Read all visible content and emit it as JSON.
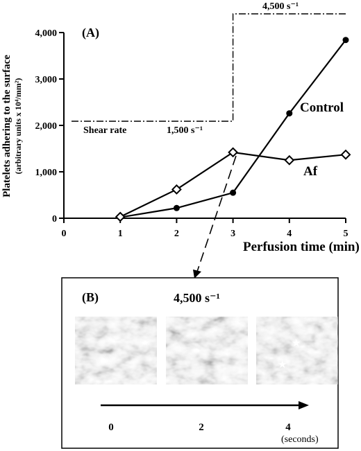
{
  "chart_data": {
    "type": "line",
    "panel_label": "(A)",
    "ylabel": "Platelets adhering to the surface",
    "ylabel_units": "(arbitrary units x 10⁴/mm²)",
    "xlabel": "Perfusion time (min)",
    "xlim": [
      0,
      5
    ],
    "ylim": [
      0,
      4000
    ],
    "x_ticks": [
      "0",
      "1",
      "2",
      "3",
      "4",
      "5"
    ],
    "y_ticks": [
      "0",
      "1,000",
      "2,000",
      "3,000",
      "4,000"
    ],
    "x_tick_values": [
      0,
      1,
      2,
      3,
      4,
      5
    ],
    "y_tick_values": [
      0,
      1000,
      2000,
      3000,
      4000
    ],
    "series": [
      {
        "name": "Control",
        "marker": "filled-circle",
        "x": [
          1,
          2,
          3,
          4,
          5
        ],
        "y": [
          20,
          220,
          550,
          2260,
          3840
        ]
      },
      {
        "name": "Af",
        "marker": "open-diamond",
        "x": [
          1,
          2,
          3,
          4,
          5
        ],
        "y": [
          30,
          620,
          1420,
          1250,
          1370
        ]
      }
    ],
    "shear_rate": {
      "label": "Shear rate",
      "low_label": "1,500 s⁻¹",
      "high_label": "4,500 s⁻¹",
      "switch_at_x": 3
    },
    "grid": false
  },
  "panel_b": {
    "label": "(B)",
    "title": "4,500 s⁻¹",
    "time_labels": [
      "0",
      "2",
      "4"
    ],
    "time_unit": "(seconds)",
    "images": [
      "micrograph-0s",
      "micrograph-2s",
      "micrograph-4s"
    ],
    "star_marker": "★"
  }
}
